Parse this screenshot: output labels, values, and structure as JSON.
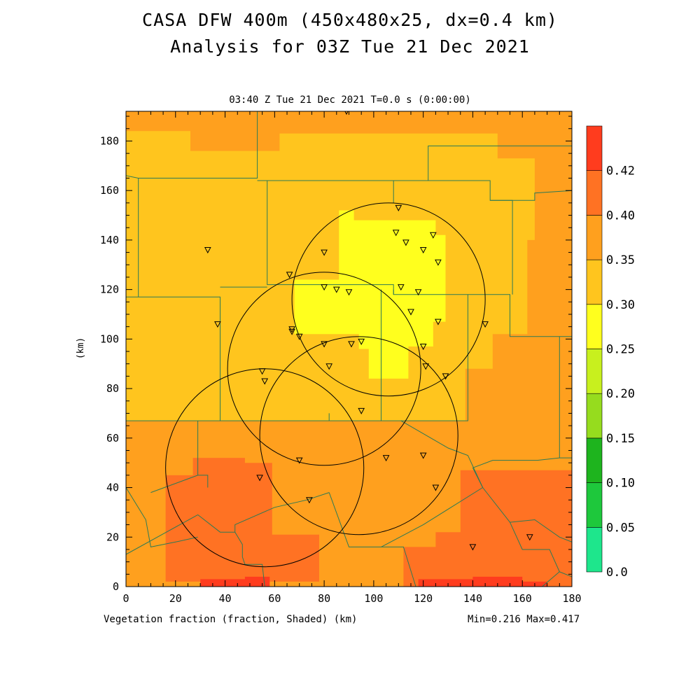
{
  "title_line1": "CASA DFW 400m (450x480x25, dx=0.4 km)",
  "title_line2": "Analysis for 03Z Tue 21 Dec 2021",
  "subtitle": "03:40 Z Tue 21 Dec 2021    T=0.0 s (0:00:00)",
  "footer_left": "Vegetation fraction (fraction, Shaded)  (km)",
  "footer_right": "Min=0.216 Max=0.417",
  "colors": {
    "c_020_025": "#ffff1e",
    "c_025_030": "#ffc51e",
    "c_030_035": "#ffa01e",
    "c_035_040": "#ff7223",
    "c_040_042": "#ff3c1e",
    "boundary": "#2d7a55"
  },
  "chart_data": {
    "type": "heatmap",
    "variable": "Vegetation fraction",
    "units": "fraction",
    "xlabel": "",
    "ylabel": "(km)",
    "xlim": [
      0,
      180
    ],
    "ylim": [
      0,
      192
    ],
    "x_ticks": [
      0,
      20,
      40,
      60,
      80,
      100,
      120,
      140,
      160,
      180
    ],
    "y_ticks": [
      0,
      20,
      40,
      60,
      80,
      100,
      120,
      140,
      160,
      180
    ],
    "colorbar": {
      "levels": [
        "0.0",
        "0.05",
        "0.10",
        "0.15",
        "0.20",
        "0.25",
        "0.30",
        "0.35",
        "0.40",
        "0.42"
      ],
      "colors": [
        "#1ee68c",
        "#1ec83c",
        "#1eb41e",
        "#96dc1e",
        "#c8f01e",
        "#ffff1e",
        "#ffc51e",
        "#ffa01e",
        "#ff7223",
        "#ff3c1e"
      ]
    },
    "min": 0.216,
    "max": 0.417,
    "regions": [
      {
        "range": "0.30-0.35",
        "polygon": [
          [
            0,
            116
          ],
          [
            18,
            116
          ],
          [
            18,
            155
          ],
          [
            80,
            155
          ],
          [
            80,
            128
          ],
          [
            95,
            128
          ],
          [
            95,
            120
          ],
          [
            100,
            120
          ],
          [
            100,
            95
          ],
          [
            110,
            95
          ],
          [
            110,
            88
          ],
          [
            120,
            88
          ],
          [
            120,
            80
          ],
          [
            137,
            80
          ],
          [
            137,
            86
          ],
          [
            150,
            86
          ],
          [
            150,
            100
          ],
          [
            162,
            100
          ],
          [
            162,
            117
          ],
          [
            180,
            117
          ],
          [
            180,
            0
          ],
          [
            0,
            0
          ]
        ]
      },
      {
        "range": "0.30-0.35",
        "polygon": [
          [
            0,
            192
          ],
          [
            60,
            192
          ],
          [
            60,
            190
          ],
          [
            120,
            190
          ],
          [
            120,
            192
          ],
          [
            180,
            192
          ],
          [
            180,
            150
          ],
          [
            165,
            150
          ],
          [
            165,
            175
          ],
          [
            150,
            175
          ],
          [
            150,
            185
          ],
          [
            60,
            185
          ],
          [
            60,
            178
          ],
          [
            30,
            178
          ],
          [
            30,
            186
          ],
          [
            0,
            186
          ]
        ]
      },
      {
        "range": "0.25-0.30",
        "polygon": [
          [
            0,
            184
          ],
          [
            26,
            184
          ],
          [
            26,
            176
          ],
          [
            62,
            176
          ],
          [
            62,
            183
          ],
          [
            150,
            183
          ],
          [
            150,
            173
          ],
          [
            165,
            173
          ],
          [
            165,
            140
          ],
          [
            162,
            140
          ],
          [
            162,
            102
          ],
          [
            148,
            102
          ],
          [
            148,
            88
          ],
          [
            137,
            88
          ],
          [
            137,
            67
          ],
          [
            0,
            67
          ]
        ]
      },
      {
        "range": "0.20-0.25",
        "polygon": [
          [
            86,
            148
          ],
          [
            86,
            152
          ],
          [
            92,
            152
          ],
          [
            92,
            148
          ],
          [
            125,
            148
          ],
          [
            125,
            142
          ],
          [
            129,
            142
          ],
          [
            129,
            107
          ],
          [
            124,
            107
          ],
          [
            124,
            97
          ],
          [
            114,
            97
          ],
          [
            114,
            84
          ],
          [
            98,
            84
          ],
          [
            98,
            96
          ],
          [
            94,
            96
          ],
          [
            94,
            102
          ],
          [
            68,
            102
          ],
          [
            68,
            124
          ],
          [
            86,
            124
          ]
        ]
      },
      {
        "range": "0.35-0.40",
        "polygon": [
          [
            16,
            0
          ],
          [
            16,
            45
          ],
          [
            27,
            45
          ],
          [
            27,
            52
          ],
          [
            48,
            52
          ],
          [
            48,
            50
          ],
          [
            59,
            50
          ],
          [
            59,
            21
          ],
          [
            78,
            21
          ],
          [
            78,
            2
          ],
          [
            16,
            2
          ]
        ]
      },
      {
        "range": "0.35-0.40",
        "polygon": [
          [
            112,
            0
          ],
          [
            112,
            16
          ],
          [
            125,
            16
          ],
          [
            125,
            22
          ],
          [
            135,
            22
          ],
          [
            135,
            47
          ],
          [
            180,
            47
          ],
          [
            180,
            0
          ]
        ]
      },
      {
        "range": "0.40-0.42",
        "polygon": [
          [
            30,
            0
          ],
          [
            30,
            3
          ],
          [
            48,
            3
          ],
          [
            48,
            4
          ],
          [
            58,
            4
          ],
          [
            58,
            0
          ]
        ]
      },
      {
        "range": "0.40-0.42",
        "polygon": [
          [
            118,
            0
          ],
          [
            118,
            3
          ],
          [
            140,
            3
          ],
          [
            140,
            4
          ],
          [
            160,
            4
          ],
          [
            160,
            2
          ],
          [
            170,
            2
          ],
          [
            170,
            0
          ]
        ]
      }
    ],
    "range_circles": [
      {
        "center": [
          106,
          116
        ],
        "radius": 39
      },
      {
        "center": [
          80,
          88
        ],
        "radius": 39
      },
      {
        "center": [
          94,
          61
        ],
        "radius": 40
      },
      {
        "center": [
          56,
          48
        ],
        "radius": 40
      }
    ],
    "stations": [
      [
        89,
        192
      ],
      [
        110,
        153
      ],
      [
        109,
        143
      ],
      [
        113,
        139
      ],
      [
        124,
        142
      ],
      [
        120,
        136
      ],
      [
        80,
        135
      ],
      [
        33,
        136
      ],
      [
        66,
        126
      ],
      [
        126,
        131
      ],
      [
        80,
        121
      ],
      [
        85,
        120
      ],
      [
        90,
        119
      ],
      [
        111,
        121
      ],
      [
        118,
        119
      ],
      [
        115,
        111
      ],
      [
        126,
        107
      ],
      [
        145,
        106
      ],
      [
        37,
        106
      ],
      [
        67,
        104
      ],
      [
        67,
        103
      ],
      [
        70,
        101
      ],
      [
        80,
        98
      ],
      [
        91,
        98
      ],
      [
        95,
        99
      ],
      [
        120,
        97
      ],
      [
        55,
        87
      ],
      [
        56,
        83
      ],
      [
        82,
        89
      ],
      [
        121,
        89
      ],
      [
        129,
        85
      ],
      [
        95,
        71
      ],
      [
        105,
        52
      ],
      [
        120,
        53
      ],
      [
        70,
        51
      ],
      [
        54,
        44
      ],
      [
        125,
        40
      ],
      [
        74,
        35
      ],
      [
        140,
        16
      ],
      [
        163,
        20
      ]
    ],
    "boundaries": [
      [
        [
          0,
          117
        ],
        [
          38,
          117
        ],
        [
          38,
          67
        ],
        [
          29,
          67
        ],
        [
          0,
          67
        ]
      ],
      [
        [
          5,
          117
        ],
        [
          5,
          165
        ],
        [
          0,
          166
        ]
      ],
      [
        [
          5,
          165
        ],
        [
          53,
          165
        ],
        [
          53,
          192
        ]
      ],
      [
        [
          53,
          164
        ],
        [
          108,
          164
        ],
        [
          122,
          164
        ],
        [
          122,
          178
        ],
        [
          140,
          178
        ],
        [
          180,
          178
        ]
      ],
      [
        [
          108,
          164
        ],
        [
          108,
          155
        ]
      ],
      [
        [
          53,
          164
        ],
        [
          57,
          164
        ],
        [
          57,
          122
        ],
        [
          108,
          122
        ],
        [
          108,
          118
        ]
      ],
      [
        [
          57,
          121
        ],
        [
          38,
          121
        ]
      ],
      [
        [
          108,
          120
        ],
        [
          108,
          118
        ],
        [
          155,
          118
        ],
        [
          155,
          101
        ],
        [
          175,
          101
        ],
        [
          180,
          101
        ]
      ],
      [
        [
          122,
          164
        ],
        [
          147,
          164
        ],
        [
          147,
          156
        ],
        [
          165,
          156
        ],
        [
          165,
          159
        ],
        [
          180,
          160
        ]
      ],
      [
        [
          147,
          156
        ],
        [
          156,
          156
        ],
        [
          156,
          118
        ]
      ],
      [
        [
          175,
          101
        ],
        [
          175,
          52
        ],
        [
          180,
          52
        ]
      ],
      [
        [
          175,
          52
        ],
        [
          166,
          51
        ],
        [
          148,
          51
        ],
        [
          140,
          48
        ]
      ],
      [
        [
          138,
          118
        ],
        [
          138,
          67
        ],
        [
          111,
          67
        ],
        [
          103,
          67
        ],
        [
          103,
          120
        ]
      ],
      [
        [
          103,
          67
        ],
        [
          82,
          67
        ],
        [
          82,
          70
        ]
      ],
      [
        [
          82,
          67
        ],
        [
          38,
          67
        ]
      ],
      [
        [
          29,
          67
        ],
        [
          29,
          45
        ],
        [
          10,
          38
        ]
      ],
      [
        [
          29,
          45
        ],
        [
          33,
          45
        ],
        [
          33,
          40
        ]
      ],
      [
        [
          29,
          29
        ],
        [
          0,
          13
        ]
      ],
      [
        [
          29,
          29
        ],
        [
          38,
          22
        ],
        [
          44,
          22
        ],
        [
          44,
          25
        ],
        [
          60,
          32
        ],
        [
          73,
          35
        ],
        [
          82,
          38
        ]
      ],
      [
        [
          0,
          40
        ],
        [
          8,
          27
        ],
        [
          10,
          16
        ],
        [
          20,
          18
        ],
        [
          29,
          20
        ]
      ],
      [
        [
          44,
          22
        ],
        [
          47,
          17
        ],
        [
          47,
          12
        ],
        [
          48,
          9
        ],
        [
          55,
          9
        ],
        [
          56,
          0
        ]
      ],
      [
        [
          82,
          38
        ],
        [
          90,
          16
        ],
        [
          103,
          16
        ],
        [
          112,
          16
        ],
        [
          117,
          0
        ]
      ],
      [
        [
          103,
          16
        ],
        [
          120,
          25
        ],
        [
          144,
          40
        ],
        [
          140,
          48
        ]
      ],
      [
        [
          111,
          67
        ],
        [
          130,
          56
        ],
        [
          138,
          53
        ],
        [
          144,
          40
        ]
      ],
      [
        [
          144,
          40
        ],
        [
          155,
          26
        ],
        [
          165,
          27
        ],
        [
          175,
          20
        ],
        [
          180,
          18
        ]
      ],
      [
        [
          155,
          26
        ],
        [
          160,
          15
        ],
        [
          171,
          15
        ],
        [
          175,
          6
        ],
        [
          180,
          4
        ]
      ],
      [
        [
          175,
          6
        ],
        [
          168,
          0
        ]
      ]
    ]
  }
}
